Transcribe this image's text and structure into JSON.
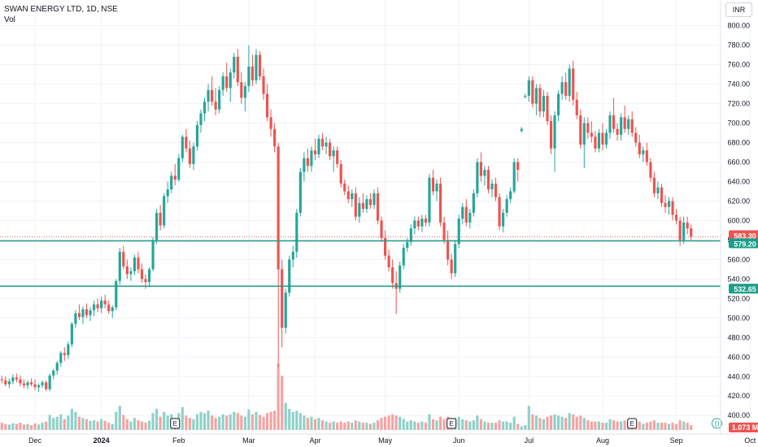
{
  "header": {
    "title": "SWAN ENERGY LTD, 1D, NSE",
    "vol_label": "Vol",
    "currency": "INR"
  },
  "colors": {
    "up": "#26a69a",
    "down": "#ef5350",
    "vol_up": "#8fd1c9",
    "vol_down": "#f5a3a3",
    "hline": "#1b9e8a",
    "price_line": "#ef5350",
    "axis_text": "#131722"
  },
  "chart_data": {
    "type": "candlestick",
    "symbol": "SWAN ENERGY LTD",
    "interval": "1D",
    "exchange": "NSE",
    "y_ticks": [
      400,
      420,
      440,
      460,
      480,
      500,
      520,
      540,
      560,
      580,
      600,
      620,
      640,
      660,
      680,
      700,
      720,
      740,
      760,
      780,
      800
    ],
    "ylim": [
      386,
      808
    ],
    "x_ticks": [
      {
        "label": "Dec",
        "bar": 9
      },
      {
        "label": "2024",
        "bar": 27
      },
      {
        "label": "Feb",
        "bar": 48
      },
      {
        "label": "Mar",
        "bar": 67
      },
      {
        "label": "Apr",
        "bar": 85
      },
      {
        "label": "May",
        "bar": 104
      },
      {
        "label": "Jun",
        "bar": 124
      },
      {
        "label": "Jul",
        "bar": 143
      },
      {
        "label": "Aug",
        "bar": 163
      },
      {
        "label": "Sep",
        "bar": 183
      },
      {
        "label": "Oct",
        "bar": 203
      }
    ],
    "current_price": "583.30",
    "current_price_value": 583.3,
    "horizontal_lines": [
      {
        "value": 579.2,
        "label": "579.20"
      },
      {
        "value": 532.65,
        "label": "532.65"
      }
    ],
    "volume_label": "1.073 M",
    "event_markers": [
      {
        "type": "E",
        "bar": 47
      },
      {
        "type": "E",
        "bar": 122
      },
      {
        "type": "E",
        "bar": 171
      },
      {
        "type": "D",
        "bar": 194
      }
    ],
    "ohlcv": [
      [
        437,
        441,
        433,
        436,
        12
      ],
      [
        436,
        440,
        430,
        432,
        10
      ],
      [
        432,
        438,
        428,
        435,
        9
      ],
      [
        435,
        442,
        432,
        439,
        11
      ],
      [
        439,
        443,
        434,
        437,
        10
      ],
      [
        437,
        441,
        430,
        433,
        12
      ],
      [
        433,
        437,
        428,
        431,
        9
      ],
      [
        431,
        436,
        427,
        434,
        10
      ],
      [
        434,
        438,
        430,
        432,
        8
      ],
      [
        432,
        437,
        426,
        429,
        11
      ],
      [
        429,
        433,
        424,
        431,
        9
      ],
      [
        431,
        436,
        428,
        434,
        12
      ],
      [
        434,
        436,
        425,
        427,
        14
      ],
      [
        427,
        443,
        425,
        441,
        25
      ],
      [
        441,
        448,
        437,
        446,
        20
      ],
      [
        446,
        456,
        442,
        454,
        22
      ],
      [
        454,
        466,
        450,
        464,
        26
      ],
      [
        464,
        470,
        456,
        462,
        18
      ],
      [
        462,
        476,
        458,
        473,
        24
      ],
      [
        473,
        496,
        470,
        494,
        35
      ],
      [
        494,
        508,
        490,
        505,
        30
      ],
      [
        505,
        514,
        498,
        501,
        22
      ],
      [
        501,
        512,
        494,
        509,
        20
      ],
      [
        509,
        515,
        500,
        503,
        18
      ],
      [
        503,
        511,
        497,
        508,
        15
      ],
      [
        508,
        518,
        502,
        514,
        16
      ],
      [
        514,
        520,
        506,
        510,
        14
      ],
      [
        510,
        522,
        505,
        518,
        18
      ],
      [
        518,
        524,
        510,
        514,
        15
      ],
      [
        514,
        518,
        504,
        507,
        12
      ],
      [
        507,
        513,
        500,
        511,
        10
      ],
      [
        511,
        540,
        508,
        538,
        30
      ],
      [
        538,
        572,
        534,
        568,
        40
      ],
      [
        568,
        574,
        550,
        553,
        25
      ],
      [
        553,
        560,
        540,
        545,
        18
      ],
      [
        545,
        552,
        538,
        548,
        14
      ],
      [
        548,
        565,
        544,
        562,
        20
      ],
      [
        562,
        568,
        546,
        550,
        16
      ],
      [
        550,
        556,
        536,
        540,
        14
      ],
      [
        540,
        545,
        530,
        537,
        12
      ],
      [
        537,
        552,
        532,
        550,
        15
      ],
      [
        550,
        583,
        548,
        580,
        28
      ],
      [
        580,
        612,
        576,
        608,
        35
      ],
      [
        608,
        616,
        590,
        595,
        22
      ],
      [
        595,
        628,
        592,
        625,
        30
      ],
      [
        625,
        640,
        618,
        632,
        24
      ],
      [
        632,
        650,
        628,
        646,
        26
      ],
      [
        646,
        658,
        636,
        642,
        20
      ],
      [
        642,
        668,
        640,
        664,
        28
      ],
      [
        664,
        688,
        660,
        686,
        38
      ],
      [
        686,
        694,
        670,
        674,
        24
      ],
      [
        674,
        682,
        654,
        658,
        20
      ],
      [
        658,
        680,
        652,
        676,
        18
      ],
      [
        676,
        702,
        672,
        698,
        26
      ],
      [
        698,
        714,
        690,
        710,
        30
      ],
      [
        710,
        726,
        702,
        722,
        28
      ],
      [
        722,
        740,
        712,
        734,
        32
      ],
      [
        734,
        748,
        718,
        722,
        24
      ],
      [
        722,
        736,
        708,
        714,
        20
      ],
      [
        714,
        738,
        710,
        734,
        22
      ],
      [
        734,
        752,
        728,
        748,
        26
      ],
      [
        748,
        762,
        732,
        736,
        24
      ],
      [
        736,
        756,
        722,
        752,
        26
      ],
      [
        752,
        772,
        746,
        768,
        30
      ],
      [
        768,
        776,
        738,
        742,
        28
      ],
      [
        742,
        752,
        720,
        726,
        24
      ],
      [
        726,
        742,
        712,
        738,
        22
      ],
      [
        738,
        780,
        732,
        758,
        34
      ],
      [
        758,
        770,
        738,
        744,
        26
      ],
      [
        744,
        776,
        740,
        770,
        30
      ],
      [
        770,
        774,
        744,
        748,
        25
      ],
      [
        748,
        756,
        724,
        730,
        22
      ],
      [
        730,
        740,
        702,
        706,
        28
      ],
      [
        706,
        714,
        686,
        694,
        30
      ],
      [
        694,
        700,
        670,
        676,
        32
      ],
      [
        676,
        680,
        450,
        550,
        110
      ],
      [
        550,
        560,
        470,
        490,
        90
      ],
      [
        490,
        530,
        484,
        526,
        45
      ],
      [
        526,
        564,
        522,
        560,
        35
      ],
      [
        560,
        574,
        552,
        568,
        30
      ],
      [
        568,
        612,
        562,
        608,
        32
      ],
      [
        608,
        654,
        604,
        650,
        28
      ],
      [
        650,
        670,
        640,
        664,
        24
      ],
      [
        664,
        674,
        650,
        656,
        20
      ],
      [
        656,
        676,
        650,
        672,
        22
      ],
      [
        672,
        684,
        662,
        668,
        18
      ],
      [
        668,
        688,
        664,
        684,
        20
      ],
      [
        684,
        690,
        672,
        676,
        16
      ],
      [
        676,
        686,
        668,
        680,
        14
      ],
      [
        680,
        684,
        662,
        666,
        12
      ],
      [
        666,
        676,
        650,
        672,
        14
      ],
      [
        672,
        676,
        654,
        658,
        12
      ],
      [
        658,
        662,
        634,
        638,
        14
      ],
      [
        638,
        642,
        626,
        630,
        12
      ],
      [
        630,
        636,
        618,
        622,
        14
      ],
      [
        622,
        632,
        614,
        628,
        12
      ],
      [
        628,
        634,
        600,
        604,
        16
      ],
      [
        604,
        624,
        598,
        618,
        14
      ],
      [
        618,
        628,
        608,
        612,
        12
      ],
      [
        612,
        626,
        608,
        622,
        12
      ],
      [
        622,
        628,
        612,
        616,
        10
      ],
      [
        616,
        632,
        612,
        628,
        12
      ],
      [
        628,
        634,
        596,
        600,
        16
      ],
      [
        600,
        604,
        578,
        582,
        20
      ],
      [
        582,
        590,
        560,
        564,
        22
      ],
      [
        564,
        570,
        548,
        552,
        24
      ],
      [
        552,
        560,
        530,
        536,
        26
      ],
      [
        536,
        548,
        504,
        530,
        24
      ],
      [
        530,
        558,
        526,
        554,
        22
      ],
      [
        554,
        576,
        550,
        572,
        18
      ],
      [
        572,
        582,
        568,
        578,
        14
      ],
      [
        578,
        596,
        574,
        592,
        16
      ],
      [
        592,
        604,
        586,
        600,
        14
      ],
      [
        600,
        604,
        590,
        594,
        12
      ],
      [
        594,
        606,
        588,
        602,
        14
      ],
      [
        602,
        606,
        594,
        598,
        12
      ],
      [
        598,
        648,
        594,
        644,
        26
      ],
      [
        644,
        652,
        626,
        630,
        18
      ],
      [
        630,
        642,
        620,
        638,
        16
      ],
      [
        638,
        644,
        594,
        598,
        22
      ],
      [
        598,
        604,
        576,
        580,
        18
      ],
      [
        580,
        590,
        554,
        560,
        22
      ],
      [
        560,
        566,
        540,
        546,
        20
      ],
      [
        546,
        580,
        542,
        576,
        20
      ],
      [
        576,
        606,
        572,
        602,
        22
      ],
      [
        602,
        618,
        596,
        614,
        18
      ],
      [
        614,
        622,
        594,
        598,
        16
      ],
      [
        598,
        612,
        592,
        608,
        14
      ],
      [
        608,
        632,
        604,
        628,
        16
      ],
      [
        628,
        664,
        624,
        660,
        24
      ],
      [
        660,
        670,
        640,
        646,
        18
      ],
      [
        646,
        656,
        636,
        652,
        14
      ],
      [
        652,
        656,
        628,
        632,
        12
      ],
      [
        632,
        642,
        624,
        638,
        12
      ],
      [
        638,
        644,
        620,
        624,
        12
      ],
      [
        624,
        628,
        590,
        594,
        16
      ],
      [
        594,
        612,
        588,
        608,
        14
      ],
      [
        608,
        626,
        604,
        622,
        14
      ],
      [
        622,
        634,
        618,
        630,
        12
      ],
      [
        630,
        664,
        628,
        660,
        22
      ],
      [
        660,
        664,
        640,
        652,
        10
      ],
      [
        692,
        696,
        690,
        694,
        6
      ],
      [
        727,
        730,
        725,
        728,
        8
      ],
      [
        728,
        748,
        722,
        744,
        40
      ],
      [
        744,
        748,
        716,
        720,
        26
      ],
      [
        720,
        740,
        708,
        736,
        24
      ],
      [
        736,
        740,
        706,
        712,
        20
      ],
      [
        712,
        734,
        706,
        728,
        18
      ],
      [
        728,
        732,
        698,
        702,
        22
      ],
      [
        702,
        708,
        668,
        674,
        24
      ],
      [
        674,
        712,
        650,
        708,
        26
      ],
      [
        708,
        734,
        702,
        730,
        24
      ],
      [
        730,
        748,
        724,
        742,
        22
      ],
      [
        742,
        752,
        724,
        728,
        20
      ],
      [
        728,
        760,
        722,
        756,
        28
      ],
      [
        756,
        764,
        718,
        724,
        26
      ],
      [
        724,
        732,
        704,
        708,
        22
      ],
      [
        708,
        714,
        674,
        678,
        24
      ],
      [
        678,
        706,
        654,
        700,
        20
      ],
      [
        700,
        706,
        684,
        690,
        16
      ],
      [
        690,
        702,
        680,
        686,
        14
      ],
      [
        686,
        692,
        670,
        674,
        14
      ],
      [
        674,
        694,
        670,
        690,
        14
      ],
      [
        690,
        700,
        672,
        678,
        12
      ],
      [
        678,
        694,
        674,
        690,
        12
      ],
      [
        690,
        712,
        684,
        708,
        18
      ],
      [
        708,
        726,
        690,
        694,
        16
      ],
      [
        694,
        700,
        682,
        688,
        14
      ],
      [
        688,
        710,
        682,
        706,
        14
      ],
      [
        706,
        718,
        690,
        694,
        16
      ],
      [
        694,
        708,
        688,
        704,
        12
      ],
      [
        704,
        712,
        686,
        690,
        12
      ],
      [
        690,
        696,
        676,
        680,
        14
      ],
      [
        680,
        688,
        664,
        668,
        14
      ],
      [
        668,
        676,
        660,
        672,
        10
      ],
      [
        672,
        680,
        656,
        660,
        12
      ],
      [
        660,
        664,
        640,
        644,
        14
      ],
      [
        644,
        650,
        624,
        628,
        16
      ],
      [
        628,
        640,
        622,
        634,
        12
      ],
      [
        634,
        638,
        614,
        618,
        12
      ],
      [
        618,
        626,
        608,
        614,
        12
      ],
      [
        614,
        624,
        606,
        620,
        10
      ],
      [
        620,
        624,
        600,
        606,
        12
      ],
      [
        606,
        612,
        596,
        600,
        10
      ],
      [
        600,
        604,
        574,
        580,
        16
      ],
      [
        580,
        604,
        576,
        598,
        14
      ],
      [
        598,
        604,
        586,
        592,
        12
      ],
      [
        592,
        596,
        580,
        583.3,
        8
      ]
    ]
  }
}
